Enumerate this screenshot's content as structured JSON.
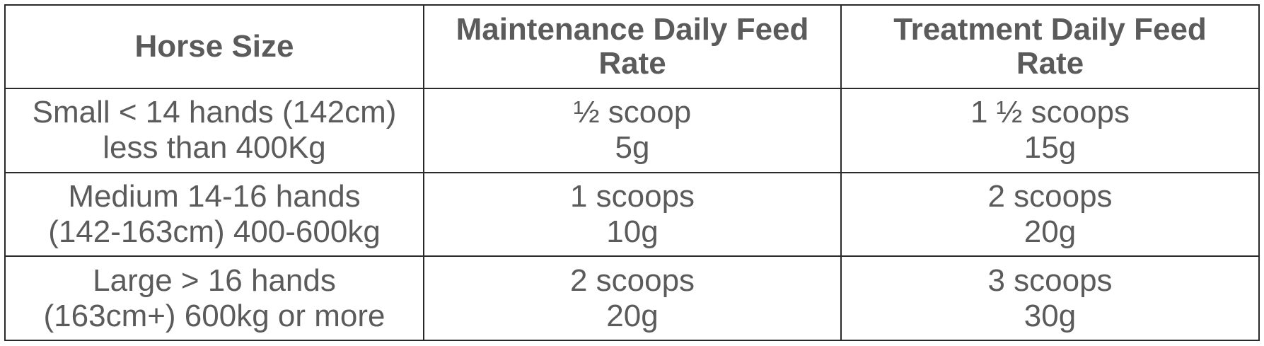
{
  "table": {
    "headers": [
      {
        "lines": [
          "Horse Size"
        ]
      },
      {
        "lines": [
          "Maintenance Daily Feed",
          "Rate"
        ]
      },
      {
        "lines": [
          "Treatment Daily Feed",
          "Rate"
        ]
      }
    ],
    "rows": [
      {
        "size": [
          "Small < 14 hands (142cm)",
          "less than 400Kg"
        ],
        "maintenance": [
          "½ scoop",
          "5g"
        ],
        "treatment": [
          "1 ½ scoops",
          "15g"
        ]
      },
      {
        "size": [
          "Medium 14-16 hands",
          "(142-163cm) 400-600kg"
        ],
        "maintenance": [
          "1 scoops",
          "10g"
        ],
        "treatment": [
          "2 scoops",
          "20g"
        ]
      },
      {
        "size": [
          "Large > 16 hands",
          "(163cm+) 600kg or more"
        ],
        "maintenance": [
          "2 scoops",
          "20g"
        ],
        "treatment": [
          "3 scoops",
          "30g"
        ]
      }
    ]
  }
}
